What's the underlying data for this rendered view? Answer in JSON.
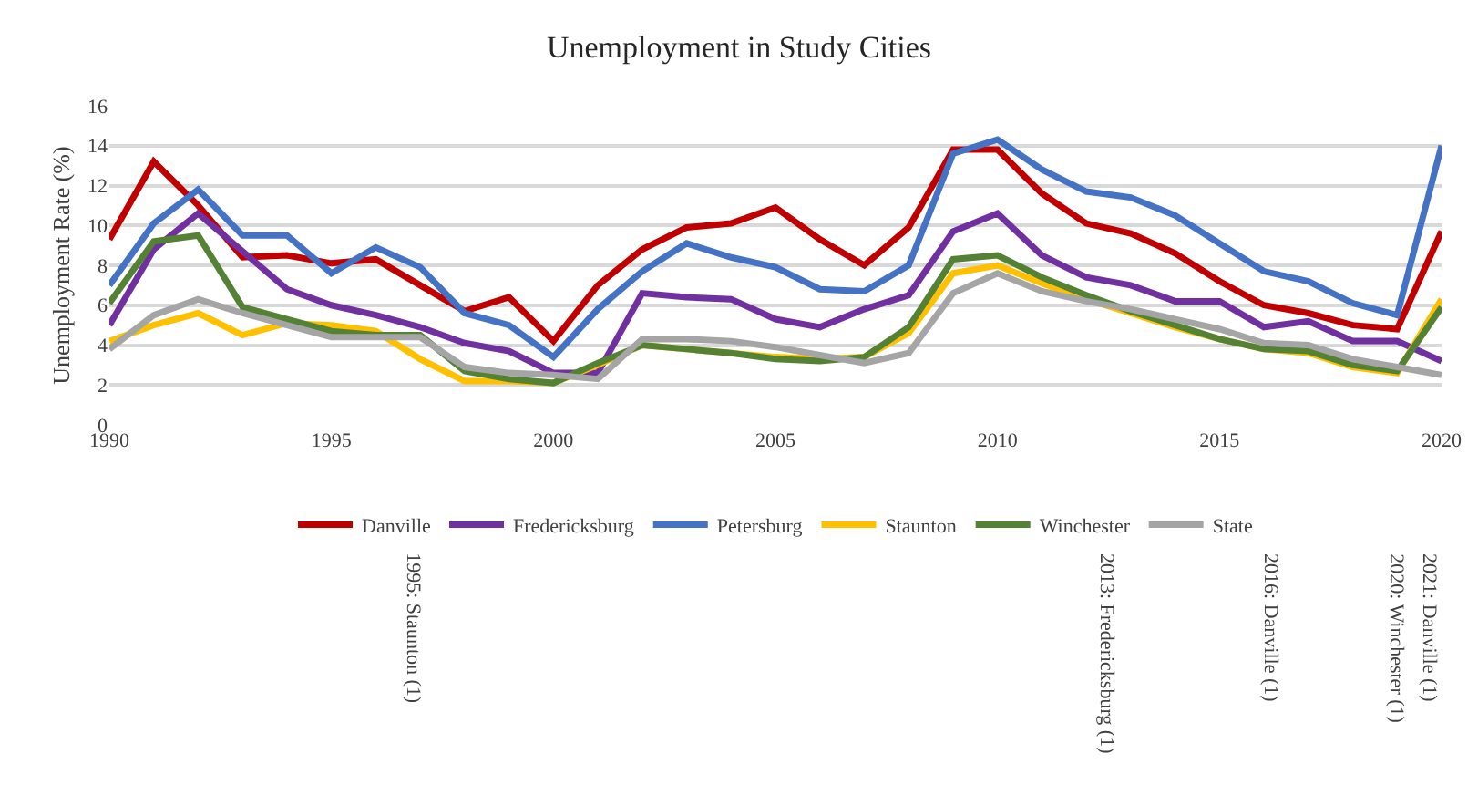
{
  "chart_data": {
    "type": "line",
    "title": "Unemployment in Study Cities",
    "ylabel": "Unemployment Rate (%)",
    "x": [
      1990,
      1991,
      1992,
      1993,
      1994,
      1995,
      1996,
      1997,
      1998,
      1999,
      2000,
      2001,
      2002,
      2003,
      2004,
      2005,
      2006,
      2007,
      2008,
      2009,
      2010,
      2011,
      2012,
      2013,
      2014,
      2015,
      2016,
      2017,
      2018,
      2019,
      2020
    ],
    "series": [
      {
        "name": "Danville",
        "color": "#c00000",
        "values": [
          9.3,
          13.2,
          11,
          8.4,
          8.5,
          8.1,
          8.3,
          7,
          5.7,
          6.4,
          4.2,
          7,
          8.8,
          9.9,
          10.1,
          10.9,
          9.3,
          8,
          9.9,
          13.8,
          13.8,
          11.6,
          10.1,
          9.6,
          8.6,
          7.2,
          6,
          5.6,
          5,
          4.8,
          9.7
        ]
      },
      {
        "name": "Fredericksburg",
        "color": "#7030a0",
        "values": [
          5,
          8.8,
          10.6,
          8.7,
          6.8,
          6,
          5.5,
          4.9,
          4.1,
          3.7,
          2.6,
          2.6,
          6.6,
          6.4,
          6.3,
          5.3,
          4.9,
          5.8,
          6.5,
          9.7,
          10.6,
          8.5,
          7.4,
          7,
          6.2,
          6.2,
          4.9,
          5.2,
          4.2,
          4.2,
          3.2
        ]
      },
      {
        "name": "Petersburg",
        "color": "#4472c4",
        "values": [
          7,
          10.1,
          11.8,
          9.5,
          9.5,
          7.6,
          8.9,
          7.9,
          5.6,
          5,
          3.4,
          5.8,
          7.7,
          9.1,
          8.4,
          7.9,
          6.8,
          6.7,
          8,
          13.6,
          14.3,
          12.8,
          11.7,
          11.4,
          10.5,
          9.1,
          7.7,
          7.2,
          6.1,
          5.5,
          14
        ]
      },
      {
        "name": "Staunton",
        "color": "#ffc000",
        "values": [
          4.2,
          5,
          5.6,
          4.5,
          5.1,
          5,
          4.7,
          3.3,
          2.2,
          2.2,
          2.1,
          3,
          4,
          3.8,
          3.6,
          3.4,
          3.3,
          3.4,
          4.6,
          7.6,
          8,
          7.1,
          6.3,
          5.6,
          4.9,
          4.3,
          3.8,
          3.6,
          2.9,
          2.6,
          6.3
        ]
      },
      {
        "name": "Winchester",
        "color": "#548235",
        "values": [
          6.1,
          9.2,
          9.5,
          5.9,
          5.3,
          4.7,
          4.5,
          4.5,
          2.7,
          2.3,
          2.1,
          3.1,
          4,
          3.8,
          3.6,
          3.3,
          3.2,
          3.4,
          4.9,
          8.3,
          8.5,
          7.4,
          6.5,
          5.7,
          5,
          4.3,
          3.8,
          3.7,
          3,
          2.7,
          5.9
        ]
      },
      {
        "name": "State",
        "color": "#a5a5a5",
        "values": [
          3.8,
          5.5,
          6.3,
          5.6,
          5,
          4.4,
          4.4,
          4.4,
          2.9,
          2.6,
          2.5,
          2.3,
          4.3,
          4.3,
          4.2,
          3.9,
          3.5,
          3.1,
          3.6,
          6.6,
          7.6,
          6.7,
          6.2,
          5.8,
          5.3,
          4.8,
          4.1,
          4,
          3.3,
          2.9,
          2.5
        ]
      }
    ],
    "xlim": [
      1990,
      2020
    ],
    "xticks": [
      1990,
      1995,
      2000,
      2005,
      2010,
      2015,
      2020
    ],
    "ylim": [
      0,
      16
    ],
    "yticks": [
      0,
      2,
      4,
      6,
      8,
      10,
      12,
      14,
      16
    ],
    "grid": "y",
    "legend": "bottom",
    "marker": "none",
    "line_style": "solid",
    "annotations": [
      "1995: Staunton (1)",
      "2013: Fredericksburg (1)",
      "2016: Danville (1)",
      "2020: Winchester (1)",
      "2021: Danville (1)"
    ]
  }
}
